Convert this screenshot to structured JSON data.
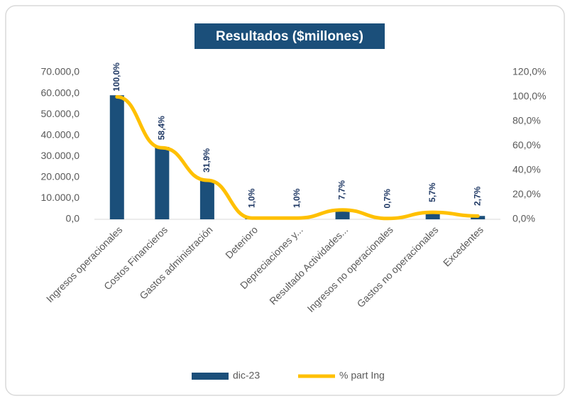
{
  "chart_data": {
    "type": "bar",
    "title": "Resultados ($millones)",
    "categories": [
      "Ingresos operacionales",
      "Costos Financieros",
      "Gastos administración",
      "Deterioro",
      "Depreciaciones y...",
      "Resultado Actividades...",
      "Ingresos no operacionales",
      "Gastos no operacionales",
      "Excedentes"
    ],
    "series": [
      {
        "name": "dic-23",
        "type": "bar",
        "color": "#1b4f7a",
        "values": [
          59100,
          34500,
          18600,
          590,
          590,
          4550,
          410,
          3370,
          1600
        ]
      },
      {
        "name": "% part Ing",
        "type": "line",
        "axis": "y2",
        "color": "#ffc000",
        "values": [
          100,
          58.4,
          31.9,
          1.0,
          1.0,
          7.7,
          0.7,
          5.7,
          2.7
        ],
        "value_labels": [
          "100,0%",
          "58,4%",
          "31,9%",
          "1,0%",
          "1,0%",
          "7,7%",
          "0,7%",
          "5,7%",
          "2,7%"
        ]
      }
    ],
    "ylim": [
      0,
      70000
    ],
    "yticks": [
      {
        "value": 0,
        "label": "0,0"
      },
      {
        "value": 10000,
        "label": "10.000,0"
      },
      {
        "value": 20000,
        "label": "20.000,0"
      },
      {
        "value": 30000,
        "label": "30.000,0"
      },
      {
        "value": 40000,
        "label": "40.000,0"
      },
      {
        "value": 50000,
        "label": "50.000,0"
      },
      {
        "value": 60000,
        "label": "60.000,0"
      },
      {
        "value": 70000,
        "label": "70.000,0"
      }
    ],
    "y2lim": [
      0,
      120
    ],
    "y2ticks": [
      {
        "value": 0,
        "label": "0,0%"
      },
      {
        "value": 20,
        "label": "20,0%"
      },
      {
        "value": 40,
        "label": "40,0%"
      },
      {
        "value": 60,
        "label": "60,0%"
      },
      {
        "value": 80,
        "label": "80,0%"
      },
      {
        "value": 100,
        "label": "100,0%"
      },
      {
        "value": 120,
        "label": "120,0%"
      }
    ],
    "legend": "bottom"
  }
}
